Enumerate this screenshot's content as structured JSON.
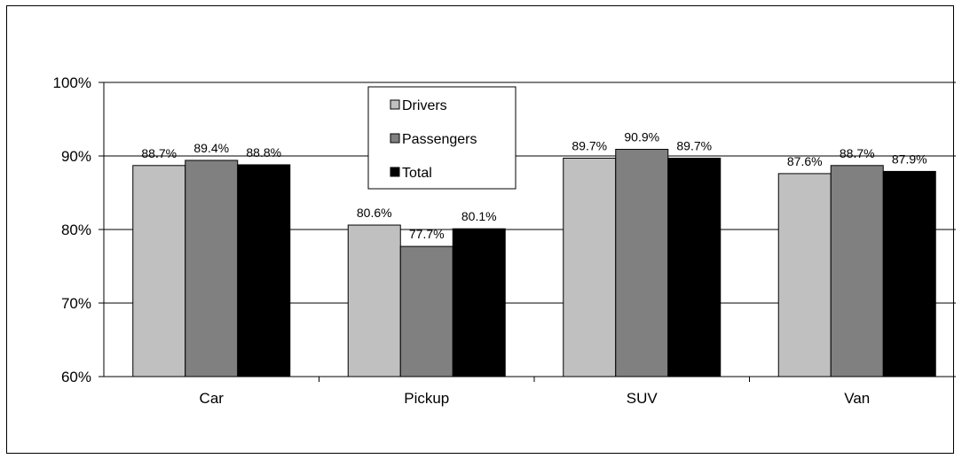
{
  "chart_data": {
    "type": "bar",
    "categories": [
      "Car",
      "Pickup",
      "SUV",
      "Van"
    ],
    "series": [
      {
        "name": "Drivers",
        "color": "#c0c0c0",
        "values": [
          88.7,
          80.6,
          89.7,
          87.6
        ],
        "labels": [
          "88.7%",
          "80.6%",
          "89.7%",
          "87.6%"
        ]
      },
      {
        "name": "Passengers",
        "color": "#808080",
        "values": [
          89.4,
          77.7,
          90.9,
          88.7
        ],
        "labels": [
          "89.4%",
          "77.7%",
          "90.9%",
          "88.7%"
        ]
      },
      {
        "name": "Total",
        "color": "#000000",
        "values": [
          88.8,
          80.1,
          89.7,
          87.9
        ],
        "labels": [
          "88.8%",
          "80.1%",
          "89.7%",
          "87.9%"
        ]
      }
    ],
    "ylim": [
      60,
      100
    ],
    "yticks": [
      60,
      70,
      80,
      90,
      100
    ],
    "ytick_labels": [
      "60%",
      "70%",
      "80%",
      "90%",
      "100%"
    ],
    "grid": true,
    "legend_position": "top-center",
    "title": "",
    "xlabel": "",
    "ylabel": ""
  }
}
